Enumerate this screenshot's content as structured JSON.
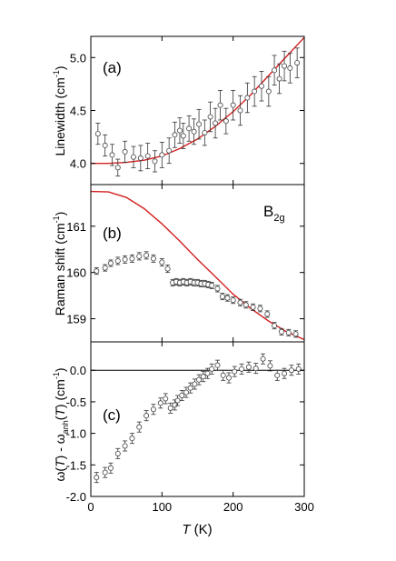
{
  "figure": {
    "x_axis_label_italic": "T",
    "x_axis_label_unit": " (K)",
    "x_ticks": [
      "0",
      "100",
      "200",
      "300"
    ]
  },
  "chart_data": [
    {
      "type": "scatter",
      "panel_label": "(a)",
      "ylabel": "Linewidth (cm",
      "ylabel_sup": "-1",
      "ylabel_close": ")",
      "xlim": [
        0,
        300
      ],
      "ylim": [
        3.8,
        5.2
      ],
      "yticks": [
        "4.0",
        "4.5",
        "5.0"
      ],
      "ytick_values": [
        4.0,
        4.5,
        5.0
      ],
      "fit_color": "#d42020",
      "fit": {
        "x": [
          0,
          25,
          50,
          75,
          100,
          125,
          150,
          175,
          200,
          225,
          250,
          275,
          300
        ],
        "y": [
          4.0,
          4.0,
          4.01,
          4.03,
          4.07,
          4.14,
          4.23,
          4.35,
          4.49,
          4.65,
          4.83,
          5.01,
          5.19
        ]
      },
      "points": [
        {
          "x": 10,
          "y": 4.28,
          "e": 0.1
        },
        {
          "x": 20,
          "y": 4.17,
          "e": 0.1
        },
        {
          "x": 30,
          "y": 4.08,
          "e": 0.1
        },
        {
          "x": 38,
          "y": 3.96,
          "e": 0.08
        },
        {
          "x": 48,
          "y": 4.11,
          "e": 0.1
        },
        {
          "x": 60,
          "y": 4.06,
          "e": 0.1
        },
        {
          "x": 70,
          "y": 4.05,
          "e": 0.12
        },
        {
          "x": 80,
          "y": 4.07,
          "e": 0.12
        },
        {
          "x": 90,
          "y": 4.02,
          "e": 0.1
        },
        {
          "x": 100,
          "y": 4.08,
          "e": 0.12
        },
        {
          "x": 110,
          "y": 4.12,
          "e": 0.12
        },
        {
          "x": 118,
          "y": 4.27,
          "e": 0.12
        },
        {
          "x": 125,
          "y": 4.31,
          "e": 0.12
        },
        {
          "x": 130,
          "y": 4.26,
          "e": 0.12
        },
        {
          "x": 138,
          "y": 4.33,
          "e": 0.12
        },
        {
          "x": 145,
          "y": 4.3,
          "e": 0.12
        },
        {
          "x": 152,
          "y": 4.37,
          "e": 0.14
        },
        {
          "x": 160,
          "y": 4.29,
          "e": 0.12
        },
        {
          "x": 168,
          "y": 4.44,
          "e": 0.14
        },
        {
          "x": 175,
          "y": 4.38,
          "e": 0.14
        },
        {
          "x": 182,
          "y": 4.55,
          "e": 0.14
        },
        {
          "x": 190,
          "y": 4.4,
          "e": 0.12
        },
        {
          "x": 200,
          "y": 4.55,
          "e": 0.14
        },
        {
          "x": 210,
          "y": 4.5,
          "e": 0.14
        },
        {
          "x": 220,
          "y": 4.62,
          "e": 0.14
        },
        {
          "x": 230,
          "y": 4.68,
          "e": 0.14
        },
        {
          "x": 240,
          "y": 4.73,
          "e": 0.14
        },
        {
          "x": 250,
          "y": 4.68,
          "e": 0.14
        },
        {
          "x": 258,
          "y": 4.88,
          "e": 0.14
        },
        {
          "x": 265,
          "y": 4.8,
          "e": 0.14
        },
        {
          "x": 272,
          "y": 4.92,
          "e": 0.14
        },
        {
          "x": 280,
          "y": 4.9,
          "e": 0.14
        },
        {
          "x": 290,
          "y": 4.95,
          "e": 0.14
        }
      ]
    },
    {
      "type": "scatter",
      "panel_label": "(b)",
      "mode_label_main": "B",
      "mode_label_sub": "2g",
      "ylabel": "Raman shift (cm",
      "ylabel_sup": "-1",
      "ylabel_close": ")",
      "xlim": [
        0,
        300
      ],
      "ylim": [
        158.5,
        161.9
      ],
      "yticks": [
        "159",
        "160",
        "161"
      ],
      "ytick_values": [
        159,
        160,
        161
      ],
      "fit_color": "#d42020",
      "fit": {
        "x": [
          0,
          25,
          50,
          75,
          100,
          125,
          150,
          175,
          200,
          225,
          250,
          275,
          300
        ],
        "y": [
          161.75,
          161.74,
          161.62,
          161.38,
          161.05,
          160.68,
          160.28,
          159.91,
          159.53,
          159.22,
          158.95,
          158.72,
          158.55
        ]
      },
      "points": [
        {
          "x": 8,
          "y": 160.03,
          "e": 0.07
        },
        {
          "x": 20,
          "y": 160.1,
          "e": 0.07
        },
        {
          "x": 28,
          "y": 160.2,
          "e": 0.07
        },
        {
          "x": 38,
          "y": 160.25,
          "e": 0.08
        },
        {
          "x": 48,
          "y": 160.28,
          "e": 0.08
        },
        {
          "x": 58,
          "y": 160.3,
          "e": 0.08
        },
        {
          "x": 68,
          "y": 160.35,
          "e": 0.08
        },
        {
          "x": 78,
          "y": 160.37,
          "e": 0.08
        },
        {
          "x": 88,
          "y": 160.3,
          "e": 0.08
        },
        {
          "x": 100,
          "y": 160.22,
          "e": 0.08
        },
        {
          "x": 108,
          "y": 160.08,
          "e": 0.08
        },
        {
          "x": 115,
          "y": 159.78,
          "e": 0.07
        },
        {
          "x": 120,
          "y": 159.8,
          "e": 0.07
        },
        {
          "x": 125,
          "y": 159.78,
          "e": 0.07
        },
        {
          "x": 130,
          "y": 159.8,
          "e": 0.07
        },
        {
          "x": 135,
          "y": 159.78,
          "e": 0.07
        },
        {
          "x": 140,
          "y": 159.8,
          "e": 0.07
        },
        {
          "x": 145,
          "y": 159.78,
          "e": 0.07
        },
        {
          "x": 150,
          "y": 159.78,
          "e": 0.07
        },
        {
          "x": 155,
          "y": 159.76,
          "e": 0.07
        },
        {
          "x": 160,
          "y": 159.76,
          "e": 0.07
        },
        {
          "x": 165,
          "y": 159.74,
          "e": 0.07
        },
        {
          "x": 170,
          "y": 159.72,
          "e": 0.07
        },
        {
          "x": 178,
          "y": 159.65,
          "e": 0.07
        },
        {
          "x": 185,
          "y": 159.48,
          "e": 0.07
        },
        {
          "x": 192,
          "y": 159.45,
          "e": 0.07
        },
        {
          "x": 200,
          "y": 159.4,
          "e": 0.07
        },
        {
          "x": 210,
          "y": 159.35,
          "e": 0.07
        },
        {
          "x": 218,
          "y": 159.3,
          "e": 0.07
        },
        {
          "x": 228,
          "y": 159.25,
          "e": 0.07
        },
        {
          "x": 238,
          "y": 159.22,
          "e": 0.07
        },
        {
          "x": 248,
          "y": 159.1,
          "e": 0.07
        },
        {
          "x": 258,
          "y": 158.85,
          "e": 0.07
        },
        {
          "x": 268,
          "y": 158.72,
          "e": 0.07
        },
        {
          "x": 278,
          "y": 158.7,
          "e": 0.07
        },
        {
          "x": 288,
          "y": 158.67,
          "e": 0.07
        }
      ]
    },
    {
      "type": "scatter",
      "panel_label": "(c)",
      "ylabel_parts": [
        "ω(",
        "T",
        ") - ω",
        "anh",
        "(",
        "T",
        ") (cm",
        "-1",
        ")"
      ],
      "xlim": [
        0,
        300
      ],
      "ylim": [
        -2.0,
        0.45
      ],
      "yticks": [
        "0.0",
        "-0.5",
        "-1.0",
        "-1.5",
        "-2.0"
      ],
      "ytick_values": [
        0.0,
        -0.5,
        -1.0,
        -1.5,
        -2.0
      ],
      "zero_line": 0.0,
      "points": [
        {
          "x": 8,
          "y": -1.7,
          "e": 0.08
        },
        {
          "x": 20,
          "y": -1.62,
          "e": 0.08
        },
        {
          "x": 28,
          "y": -1.55,
          "e": 0.08
        },
        {
          "x": 38,
          "y": -1.32,
          "e": 0.08
        },
        {
          "x": 48,
          "y": -1.2,
          "e": 0.08
        },
        {
          "x": 58,
          "y": -1.08,
          "e": 0.08
        },
        {
          "x": 68,
          "y": -0.9,
          "e": 0.08
        },
        {
          "x": 78,
          "y": -0.72,
          "e": 0.08
        },
        {
          "x": 88,
          "y": -0.62,
          "e": 0.08
        },
        {
          "x": 98,
          "y": -0.52,
          "e": 0.08
        },
        {
          "x": 105,
          "y": -0.45,
          "e": 0.08
        },
        {
          "x": 112,
          "y": -0.6,
          "e": 0.08
        },
        {
          "x": 118,
          "y": -0.55,
          "e": 0.08
        },
        {
          "x": 122,
          "y": -0.48,
          "e": 0.08
        },
        {
          "x": 128,
          "y": -0.4,
          "e": 0.08
        },
        {
          "x": 134,
          "y": -0.35,
          "e": 0.08
        },
        {
          "x": 140,
          "y": -0.28,
          "e": 0.08
        },
        {
          "x": 146,
          "y": -0.22,
          "e": 0.08
        },
        {
          "x": 152,
          "y": -0.15,
          "e": 0.08
        },
        {
          "x": 158,
          "y": -0.1,
          "e": 0.08
        },
        {
          "x": 164,
          "y": -0.05,
          "e": 0.08
        },
        {
          "x": 170,
          "y": 0.02,
          "e": 0.08
        },
        {
          "x": 178,
          "y": 0.08,
          "e": 0.08
        },
        {
          "x": 186,
          "y": -0.08,
          "e": 0.08
        },
        {
          "x": 194,
          "y": -0.12,
          "e": 0.08
        },
        {
          "x": 202,
          "y": -0.02,
          "e": 0.08
        },
        {
          "x": 212,
          "y": 0.02,
          "e": 0.08
        },
        {
          "x": 222,
          "y": 0.05,
          "e": 0.08
        },
        {
          "x": 232,
          "y": 0.03,
          "e": 0.08
        },
        {
          "x": 242,
          "y": 0.18,
          "e": 0.08
        },
        {
          "x": 252,
          "y": 0.07,
          "e": 0.08
        },
        {
          "x": 262,
          "y": -0.08,
          "e": 0.08
        },
        {
          "x": 272,
          "y": -0.05,
          "e": 0.08
        },
        {
          "x": 282,
          "y": 0.0,
          "e": 0.08
        },
        {
          "x": 292,
          "y": 0.02,
          "e": 0.08
        }
      ]
    }
  ]
}
